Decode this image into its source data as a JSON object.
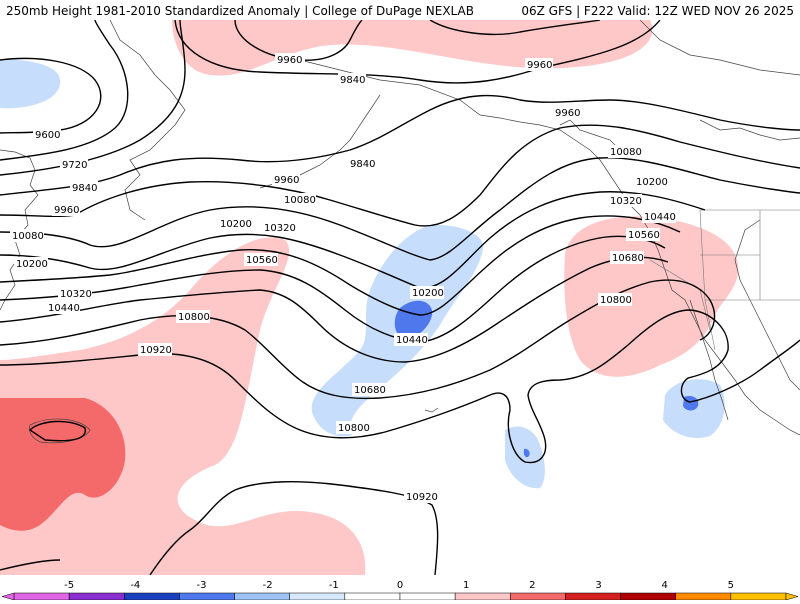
{
  "header": {
    "left_title": "250mb Height 1981-2010 Standardized Anomaly | College of DuPage NEXLAB",
    "right_title": "06Z GFS | F222 Valid: 12Z WED NOV 26 2025"
  },
  "map": {
    "contour_color": "#000000",
    "anomaly_colors": {
      "pos1": "#ffc8c8",
      "pos2": "#f46a6a",
      "neg1": "#c6ddfb",
      "neg2": "#4f78ec"
    },
    "contour_labels": [
      {
        "text": "9960",
        "id": "c9960a"
      },
      {
        "text": "9960",
        "id": "c9960b"
      },
      {
        "text": "9840",
        "id": "c9840a"
      },
      {
        "text": "9600",
        "id": "c9600"
      },
      {
        "text": "9960",
        "id": "c9960c"
      },
      {
        "text": "9720",
        "id": "c9720"
      },
      {
        "text": "9840",
        "id": "c9840b"
      },
      {
        "text": "9840",
        "id": "c9840c"
      },
      {
        "text": "9960",
        "id": "c9960d"
      },
      {
        "text": "10080",
        "id": "c10080a"
      },
      {
        "text": "10080",
        "id": "c10080b"
      },
      {
        "text": "10200",
        "id": "c10200a"
      },
      {
        "text": "10320",
        "id": "c10320a"
      },
      {
        "text": "10200",
        "id": "c10200b"
      },
      {
        "text": "9960",
        "id": "c9960e"
      },
      {
        "text": "10080",
        "id": "c10080c"
      },
      {
        "text": "10200",
        "id": "c10200c"
      },
      {
        "text": "10320",
        "id": "c10320b"
      },
      {
        "text": "10440",
        "id": "c10440a"
      },
      {
        "text": "10560",
        "id": "c10560a"
      },
      {
        "text": "10680",
        "id": "c10680a"
      },
      {
        "text": "10560",
        "id": "c10560b"
      },
      {
        "text": "10200",
        "id": "c10200d"
      },
      {
        "text": "10320",
        "id": "c10320c"
      },
      {
        "text": "10440",
        "id": "c10440b"
      },
      {
        "text": "10440",
        "id": "c10440c"
      },
      {
        "text": "10800",
        "id": "c10800a"
      },
      {
        "text": "10800",
        "id": "c10800b"
      },
      {
        "text": "10920",
        "id": "c10920a"
      },
      {
        "text": "10680",
        "id": "c10680b"
      },
      {
        "text": "10800",
        "id": "c10800c"
      },
      {
        "text": "10920",
        "id": "c10920b"
      }
    ]
  },
  "colorbar": {
    "ticks": [
      "-5",
      "-4",
      "-3",
      "-2",
      "-1",
      "0",
      "1",
      "2",
      "3",
      "4",
      "5"
    ],
    "bins": [
      {
        "color": "#e066e6"
      },
      {
        "color": "#8a2fcf"
      },
      {
        "color": "#1a40c0"
      },
      {
        "color": "#4f78ec"
      },
      {
        "color": "#9ec2f5"
      },
      {
        "color": "#d6e8fc"
      },
      {
        "color": "#ffffff"
      },
      {
        "color": "#ffffff"
      },
      {
        "color": "#ffc8c8"
      },
      {
        "color": "#f46a6a"
      },
      {
        "color": "#d42020"
      },
      {
        "color": "#b00000"
      },
      {
        "color": "#ff8a00"
      },
      {
        "color": "#ffc000"
      }
    ]
  }
}
